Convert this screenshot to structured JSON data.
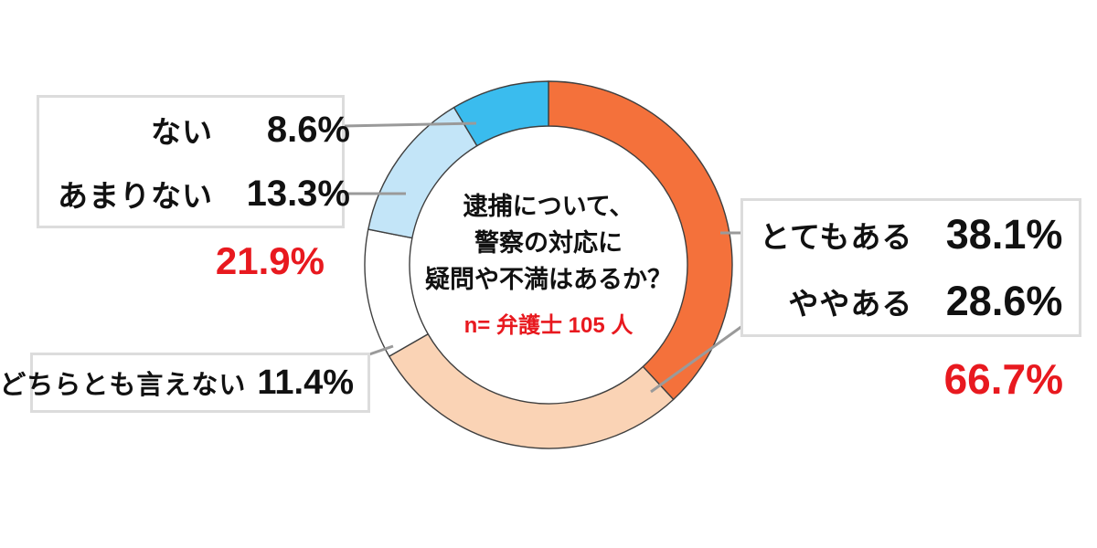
{
  "chart_data": {
    "type": "pie",
    "variant": "donut",
    "title": "逮捕について、警察の対応に疑問や不満はあるか？",
    "center_text_lines": [
      "逮捕について、",
      "警察の対応に",
      "疑問や不満はあるか？"
    ],
    "sample_note": "n= 弁護士 105 人",
    "categories": [
      "とてもある",
      "ややある",
      "どちらとも言えない",
      "あまりない",
      "ない"
    ],
    "values": [
      38.1,
      28.6,
      11.4,
      13.3,
      8.6
    ],
    "unit": "%",
    "colors": [
      "#f4713b",
      "#fad3b5",
      "#ffffff",
      "#c3e5f8",
      "#3abcee"
    ],
    "start_angle_deg": 0,
    "clockwise": true,
    "legend_position": "callout-boxes",
    "summary_totals": {
      "aru_total": "66.7%",
      "nai_total": "21.9%"
    }
  },
  "boxes": {
    "top_left": {
      "rows": [
        {
          "label": "ない",
          "value": "8.6%"
        },
        {
          "label": "あまりない",
          "value": "13.3%"
        }
      ],
      "total": "21.9%"
    },
    "right": {
      "rows": [
        {
          "label": "とてもある",
          "value": "38.1%"
        },
        {
          "label": "ややある",
          "value": "28.6%"
        }
      ],
      "total": "66.7%"
    },
    "bottom_left": {
      "label": "どちらとも言えない",
      "value": "11.4%"
    }
  },
  "colors": {
    "accent_red": "#e8191f",
    "text": "#111111",
    "box_border": "#dcdcdc",
    "leader_line": "#9a9a9a",
    "segment_outline": "#3f3f3f",
    "background": "#ffffff"
  }
}
